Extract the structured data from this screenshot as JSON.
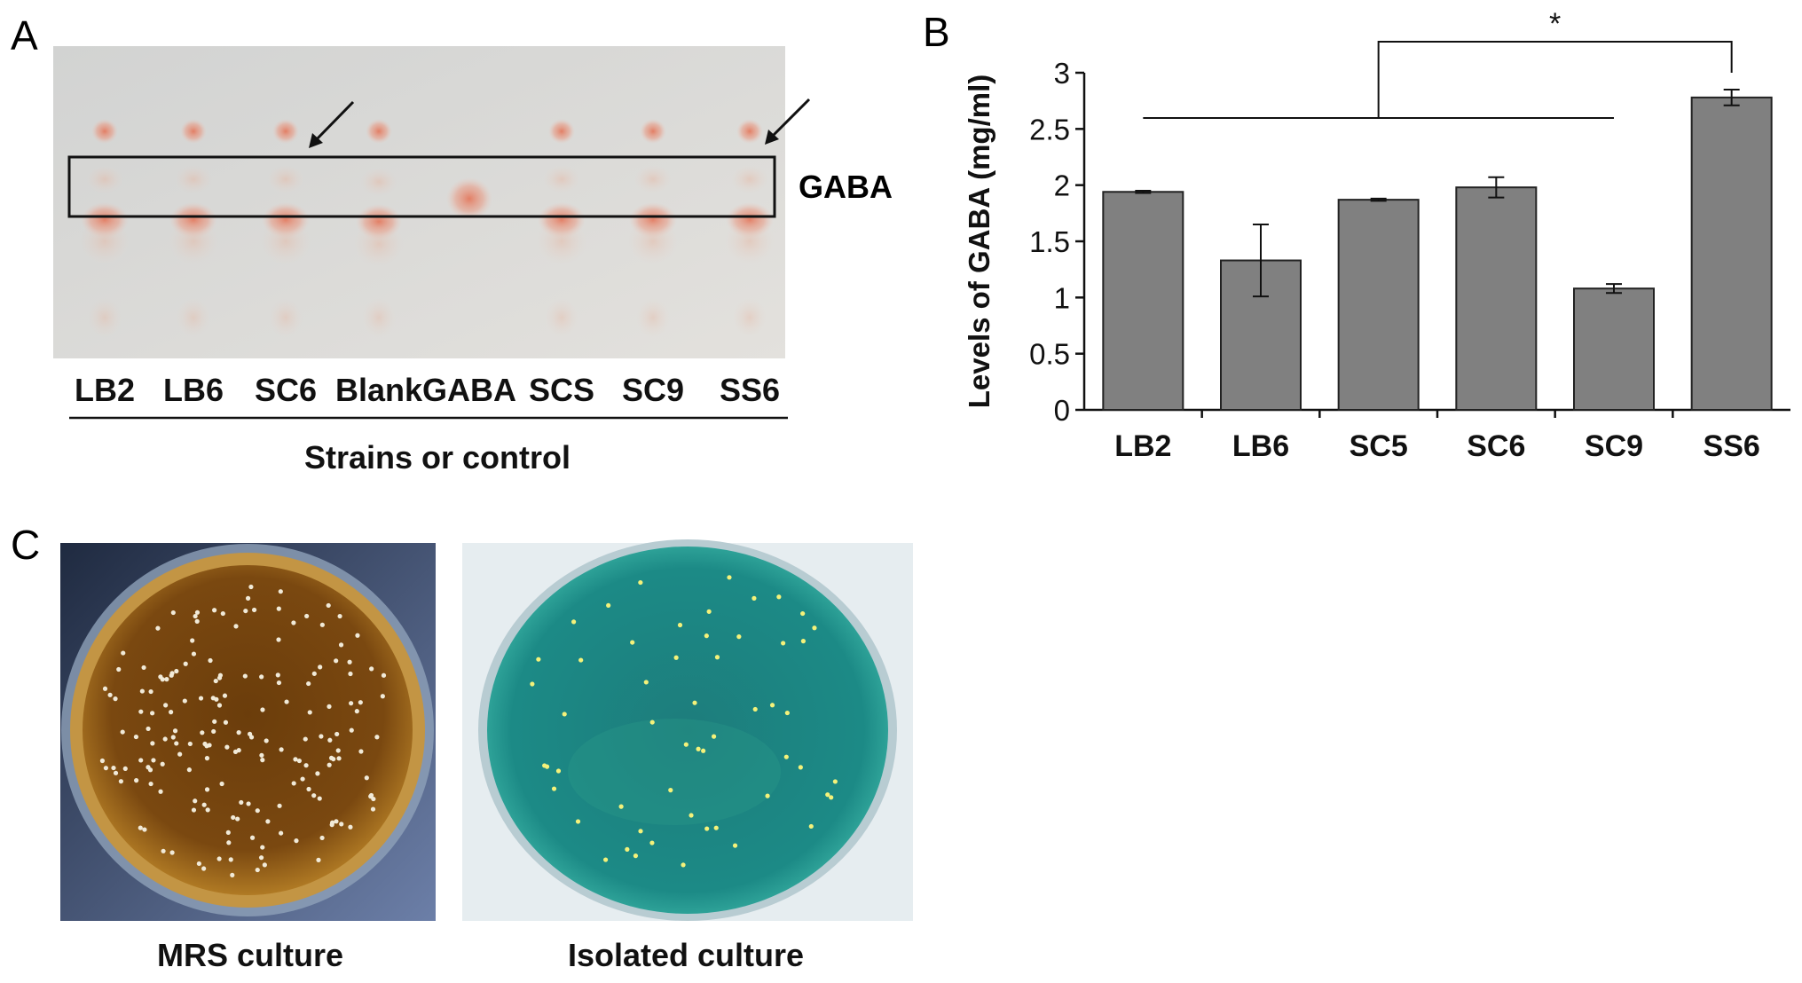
{
  "panels": {
    "a": {
      "letter": "A",
      "lanes": [
        "LB2",
        "LB6",
        "SC6",
        "Blank",
        "GABA",
        "SCS",
        "SC9",
        "SS6"
      ],
      "box_label": "GABA",
      "xlabel": "Strains or control"
    },
    "b": {
      "letter": "B",
      "significance": "*"
    },
    "c": {
      "letter": "C",
      "captions": [
        "MRS culture",
        "Isolated culture"
      ]
    }
  },
  "chart_data": {
    "type": "bar",
    "categories": [
      "LB2",
      "LB6",
      "SC5",
      "SC6",
      "SC9",
      "SS6"
    ],
    "values": [
      1.94,
      1.33,
      1.87,
      1.98,
      1.08,
      2.78
    ],
    "errors": [
      0.01,
      0.32,
      0.01,
      0.09,
      0.04,
      0.07
    ],
    "ylabel": "Levels of GABA (mg/ml)",
    "xlabel": "",
    "ylim": [
      0,
      3
    ],
    "yticks": [
      0,
      0.5,
      1,
      1.5,
      2,
      2.5,
      3
    ],
    "bar_color": "#808080",
    "significance_label": "*",
    "grid": false
  },
  "colors": {
    "tlc_plate": "#dcdad6",
    "spot": "#e08a76",
    "mrs_agar": "#7a4a10",
    "isolated_agar": "#1f8a82"
  }
}
